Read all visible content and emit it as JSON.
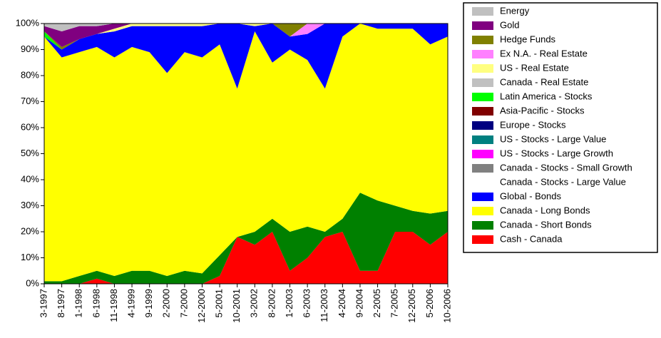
{
  "chart_data": {
    "type": "stacked-area",
    "x": [
      "3-1997",
      "8-1997",
      "1-1998",
      "6-1998",
      "11-1998",
      "4-1999",
      "9-1999",
      "2-2000",
      "7-2000",
      "12-2000",
      "5-2001",
      "10-2001",
      "3-2002",
      "8-2002",
      "1-2003",
      "6-2003",
      "11-2003",
      "4-2004",
      "9-2004",
      "2-2005",
      "7-2005",
      "12-2005",
      "5-2006",
      "10-2006"
    ],
    "ylim": [
      0,
      100
    ],
    "yticks": [
      {
        "value": 0,
        "label": "0%"
      },
      {
        "value": 10,
        "label": "10%"
      },
      {
        "value": 20,
        "label": "20%"
      },
      {
        "value": 30,
        "label": "30%"
      },
      {
        "value": 40,
        "label": "40%"
      },
      {
        "value": 50,
        "label": "50%"
      },
      {
        "value": 60,
        "label": "60%"
      },
      {
        "value": 70,
        "label": "70%"
      },
      {
        "value": 80,
        "label": "80%"
      },
      {
        "value": 90,
        "label": "90%"
      },
      {
        "value": 100,
        "label": "100%"
      }
    ],
    "grid": false,
    "legend": "right",
    "series": [
      {
        "name": "Cash - Canada",
        "color": "#ff0000",
        "values": [
          0,
          0,
          0,
          2,
          0,
          0,
          0,
          0,
          0,
          0,
          3,
          18,
          15,
          20,
          5,
          10,
          18,
          20,
          5,
          5,
          20,
          20,
          15,
          20
        ]
      },
      {
        "name": "Canada - Short Bonds",
        "color": "#008000",
        "values": [
          1,
          1,
          3,
          3,
          3,
          5,
          5,
          3,
          5,
          4,
          8,
          0,
          5,
          5,
          15,
          12,
          2,
          5,
          30,
          27,
          10,
          8,
          12,
          8
        ]
      },
      {
        "name": "Canada - Long Bonds",
        "color": "#ffff00",
        "values": [
          94,
          86,
          86,
          86,
          84,
          86,
          84,
          78,
          84,
          83,
          81,
          57,
          77,
          60,
          70,
          64,
          55,
          70,
          65,
          66,
          68,
          70,
          65,
          67
        ]
      },
      {
        "name": "Global - Bonds",
        "color": "#0000ff",
        "values": [
          0,
          3,
          5,
          5,
          10,
          8,
          10,
          18,
          10,
          12,
          8,
          25,
          2,
          15,
          5,
          10,
          25,
          5,
          0,
          2,
          2,
          2,
          8,
          5
        ]
      },
      {
        "name": "Canada - Stocks - Large Value",
        "color": "#ffffff",
        "values": [
          0,
          0,
          0,
          0,
          0,
          0,
          0,
          0,
          0,
          0,
          0,
          0,
          0,
          0,
          0,
          0,
          0,
          0,
          0,
          0,
          0,
          0,
          0,
          0
        ]
      },
      {
        "name": "Canada - Stocks - Small Growth",
        "color": "#808080",
        "values": [
          0,
          0,
          0,
          0,
          0,
          0,
          0,
          0,
          0,
          0,
          0,
          0,
          0,
          0,
          0,
          0,
          0,
          0,
          0,
          0,
          0,
          0,
          0,
          0
        ]
      },
      {
        "name": "US - Stocks - Large Growth",
        "color": "#ff00ff",
        "values": [
          0,
          0,
          0,
          0,
          0,
          0,
          0,
          0,
          0,
          0,
          0,
          0,
          0,
          0,
          0,
          0,
          0,
          0,
          0,
          0,
          0,
          0,
          0,
          0
        ]
      },
      {
        "name": "US - Stocks - Large Value",
        "color": "#008080",
        "values": [
          0,
          0,
          0,
          0,
          0,
          0,
          0,
          0,
          0,
          0,
          0,
          0,
          0,
          0,
          0,
          0,
          0,
          0,
          0,
          0,
          0,
          0,
          0,
          0
        ]
      },
      {
        "name": "Europe - Stocks",
        "color": "#000080",
        "values": [
          0,
          0,
          0,
          0,
          0,
          0,
          0,
          0,
          0,
          0,
          0,
          0,
          0,
          0,
          0,
          0,
          0,
          0,
          0,
          0,
          0,
          0,
          0,
          0
        ]
      },
      {
        "name": "Asia-Pacific - Stocks",
        "color": "#800000",
        "values": [
          0,
          0,
          0,
          0,
          0,
          0,
          0,
          0,
          0,
          0,
          0,
          0,
          0,
          0,
          0,
          0,
          0,
          0,
          0,
          0,
          0,
          0,
          0,
          0
        ]
      },
      {
        "name": "Latin America - Stocks",
        "color": "#00ff00",
        "values": [
          2,
          0,
          0,
          0,
          0,
          0,
          0,
          0,
          0,
          0,
          0,
          0,
          0,
          0,
          0,
          0,
          0,
          0,
          0,
          0,
          0,
          0,
          0,
          0
        ]
      },
      {
        "name": "Canada - Real Estate",
        "color": "#c0c0c0",
        "values": [
          0,
          0,
          0,
          0,
          0,
          0,
          0,
          0,
          0,
          0,
          0,
          0,
          0,
          0,
          0,
          0,
          0,
          0,
          0,
          0,
          0,
          0,
          0,
          0
        ]
      },
      {
        "name": "US - Real Estate",
        "color": "#ffff80",
        "values": [
          0,
          0,
          0,
          0,
          1,
          1,
          1,
          1,
          1,
          1,
          0,
          0,
          1,
          0,
          0,
          0,
          0,
          0,
          0,
          0,
          0,
          0,
          0,
          0
        ]
      },
      {
        "name": "Ex N.A. - Real Estate",
        "color": "#ff80ff",
        "values": [
          0,
          0,
          0,
          0,
          0,
          0,
          0,
          0,
          0,
          0,
          0,
          0,
          0,
          0,
          0,
          4,
          0,
          0,
          0,
          0,
          0,
          0,
          0,
          0
        ]
      },
      {
        "name": "Hedge Funds",
        "color": "#808000",
        "values": [
          0,
          1,
          0,
          0,
          0,
          0,
          0,
          0,
          0,
          0,
          0,
          0,
          0,
          0,
          5,
          0,
          0,
          0,
          0,
          0,
          0,
          0,
          0,
          0
        ]
      },
      {
        "name": "Gold",
        "color": "#800080",
        "values": [
          2,
          6,
          5,
          3,
          2,
          0,
          0,
          0,
          0,
          0,
          0,
          0,
          0,
          0,
          0,
          0,
          0,
          0,
          0,
          0,
          0,
          0,
          0,
          0
        ]
      },
      {
        "name": "Energy",
        "color": "#c0c0c0",
        "values": [
          1,
          3,
          1,
          1,
          0,
          0,
          0,
          0,
          0,
          0,
          0,
          0,
          0,
          0,
          0,
          0,
          0,
          0,
          0,
          0,
          0,
          0,
          0,
          0
        ]
      }
    ]
  }
}
